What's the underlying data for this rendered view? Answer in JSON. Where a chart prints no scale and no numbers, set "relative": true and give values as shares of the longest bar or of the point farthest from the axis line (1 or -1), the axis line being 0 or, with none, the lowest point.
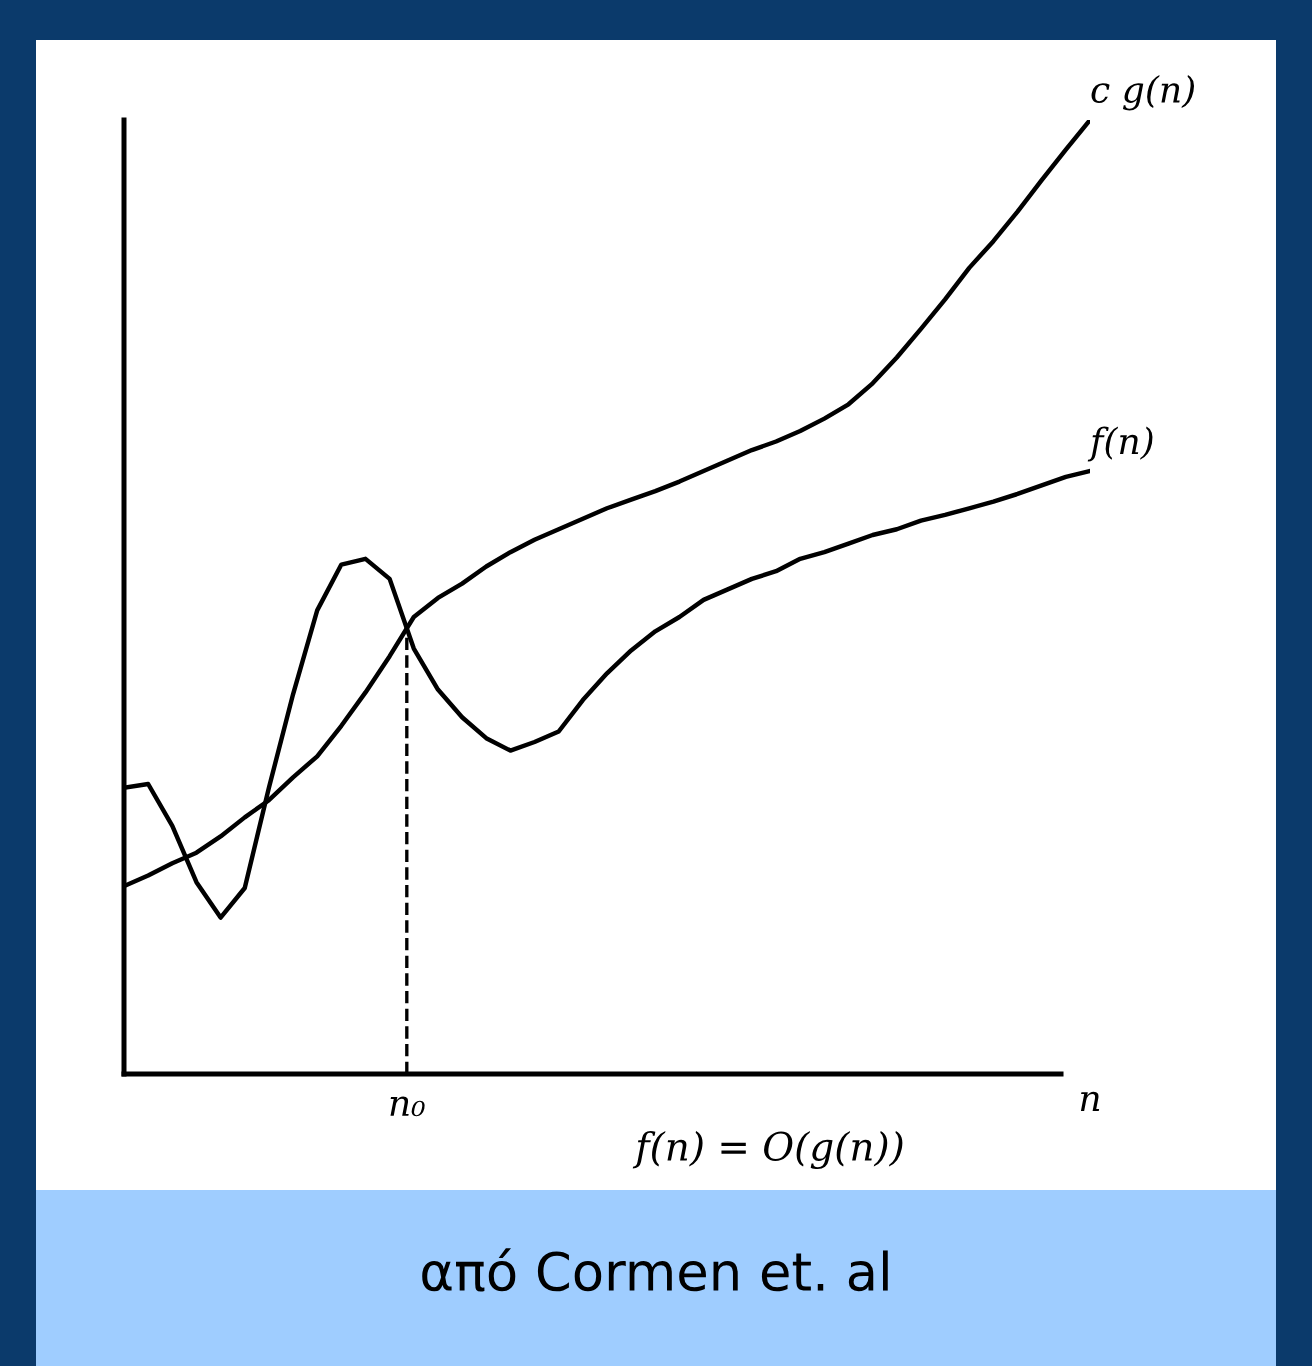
{
  "chart_data": {
    "type": "line",
    "relative": true,
    "xlabel": "n",
    "categories": [
      null,
      null,
      null,
      null,
      null,
      null,
      null,
      null,
      null,
      null,
      null,
      null,
      null,
      null,
      null,
      null,
      null,
      null,
      null,
      null,
      null,
      null,
      null,
      null,
      null,
      null,
      null,
      null,
      null,
      null,
      null,
      null,
      null,
      null,
      null,
      null,
      null,
      null,
      null,
      null,
      null
    ],
    "series": [
      {
        "name": "c g(n)",
        "color": "#000000",
        "values": [
          0.197,
          0.208,
          0.221,
          0.232,
          0.249,
          0.269,
          0.287,
          0.311,
          0.333,
          0.365,
          0.4,
          0.438,
          0.479,
          0.499,
          0.514,
          0.532,
          0.547,
          0.56,
          0.571,
          0.582,
          0.593,
          0.602,
          0.611,
          0.621,
          0.632,
          0.643,
          0.654,
          0.663,
          0.674,
          0.687,
          0.702,
          0.724,
          0.751,
          0.781,
          0.812,
          0.845,
          0.873,
          0.904,
          0.937,
          0.969,
          1
        ]
      },
      {
        "name": "f(n)",
        "color": "#000000",
        "values": [
          0.3,
          0.304,
          0.26,
          0.201,
          0.164,
          0.195,
          0.3,
          0.398,
          0.486,
          0.534,
          0.54,
          0.519,
          0.446,
          0.403,
          0.374,
          0.352,
          0.339,
          0.348,
          0.359,
          0.392,
          0.42,
          0.444,
          0.464,
          0.479,
          0.497,
          0.508,
          0.519,
          0.527,
          0.54,
          0.547,
          0.556,
          0.565,
          0.571,
          0.58,
          0.586,
          0.593,
          0.6,
          0.608,
          0.617,
          0.626,
          0.632
        ]
      }
    ],
    "annotations": [
      "f(n) = O(g(n))",
      "από Cormen et. al",
      "n₀"
    ]
  }
}
